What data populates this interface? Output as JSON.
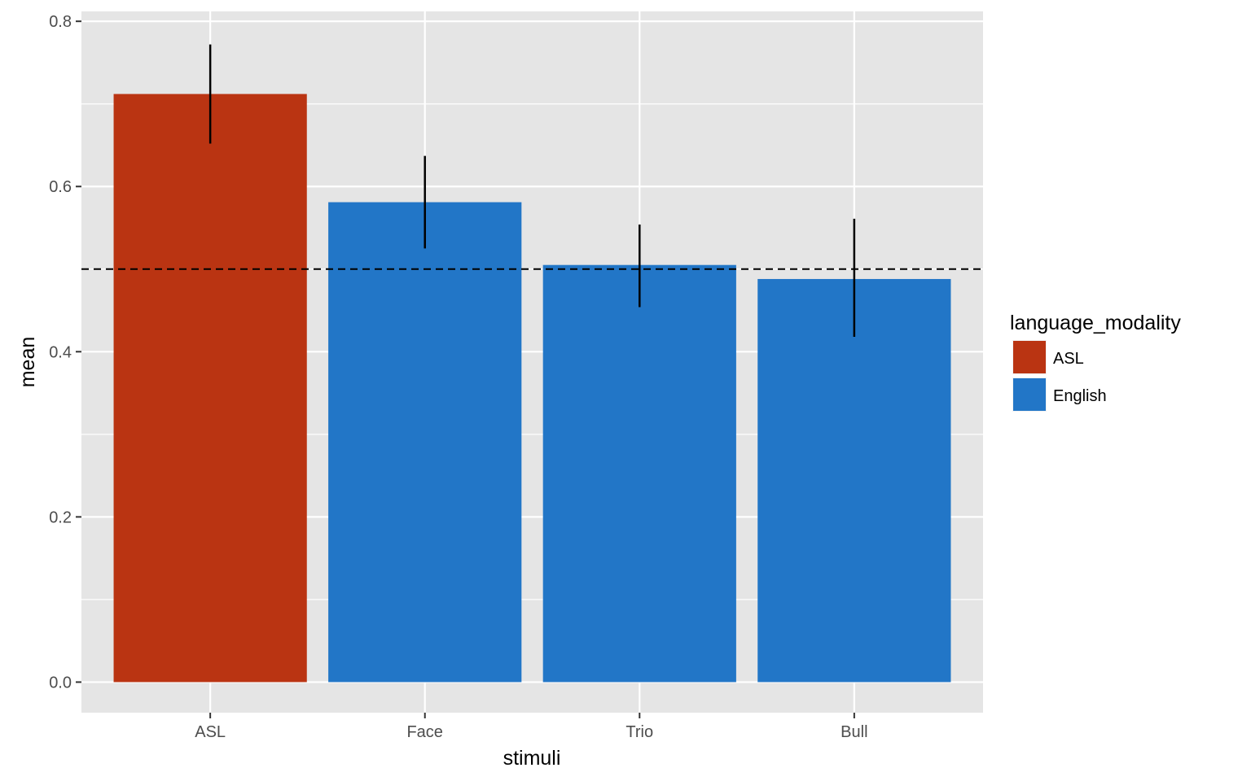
{
  "chart_data": {
    "type": "bar",
    "title": "",
    "xlabel": "stimuli",
    "ylabel": "mean",
    "categories": [
      "ASL",
      "Face",
      "Trio",
      "Bull"
    ],
    "values": [
      0.712,
      0.581,
      0.505,
      0.488
    ],
    "error_bars": [
      {
        "low": 0.652,
        "high": 0.772
      },
      {
        "low": 0.525,
        "high": 0.637
      },
      {
        "low": 0.454,
        "high": 0.554
      },
      {
        "low": 0.418,
        "high": 0.561
      }
    ],
    "group": [
      "ASL",
      "English",
      "English",
      "English"
    ],
    "reference_line": {
      "value": 0.5,
      "style": "dashed"
    },
    "ylim": [
      -0.037,
      0.812
    ],
    "yticks": [
      0.0,
      0.2,
      0.4,
      0.6,
      0.8
    ],
    "ytick_labels": [
      "0.0",
      "0.2",
      "0.4",
      "0.6",
      "0.8"
    ],
    "grid": true,
    "legend": {
      "title": "language_modality",
      "position": "right",
      "entries": [
        {
          "label": "ASL",
          "color": "#ba3412"
        },
        {
          "label": "English",
          "color": "#2276c7"
        }
      ]
    },
    "colors": {
      "ASL": "#ba3412",
      "English": "#2276c7",
      "panel": "#e5e5e5",
      "grid": "#ffffff"
    }
  }
}
